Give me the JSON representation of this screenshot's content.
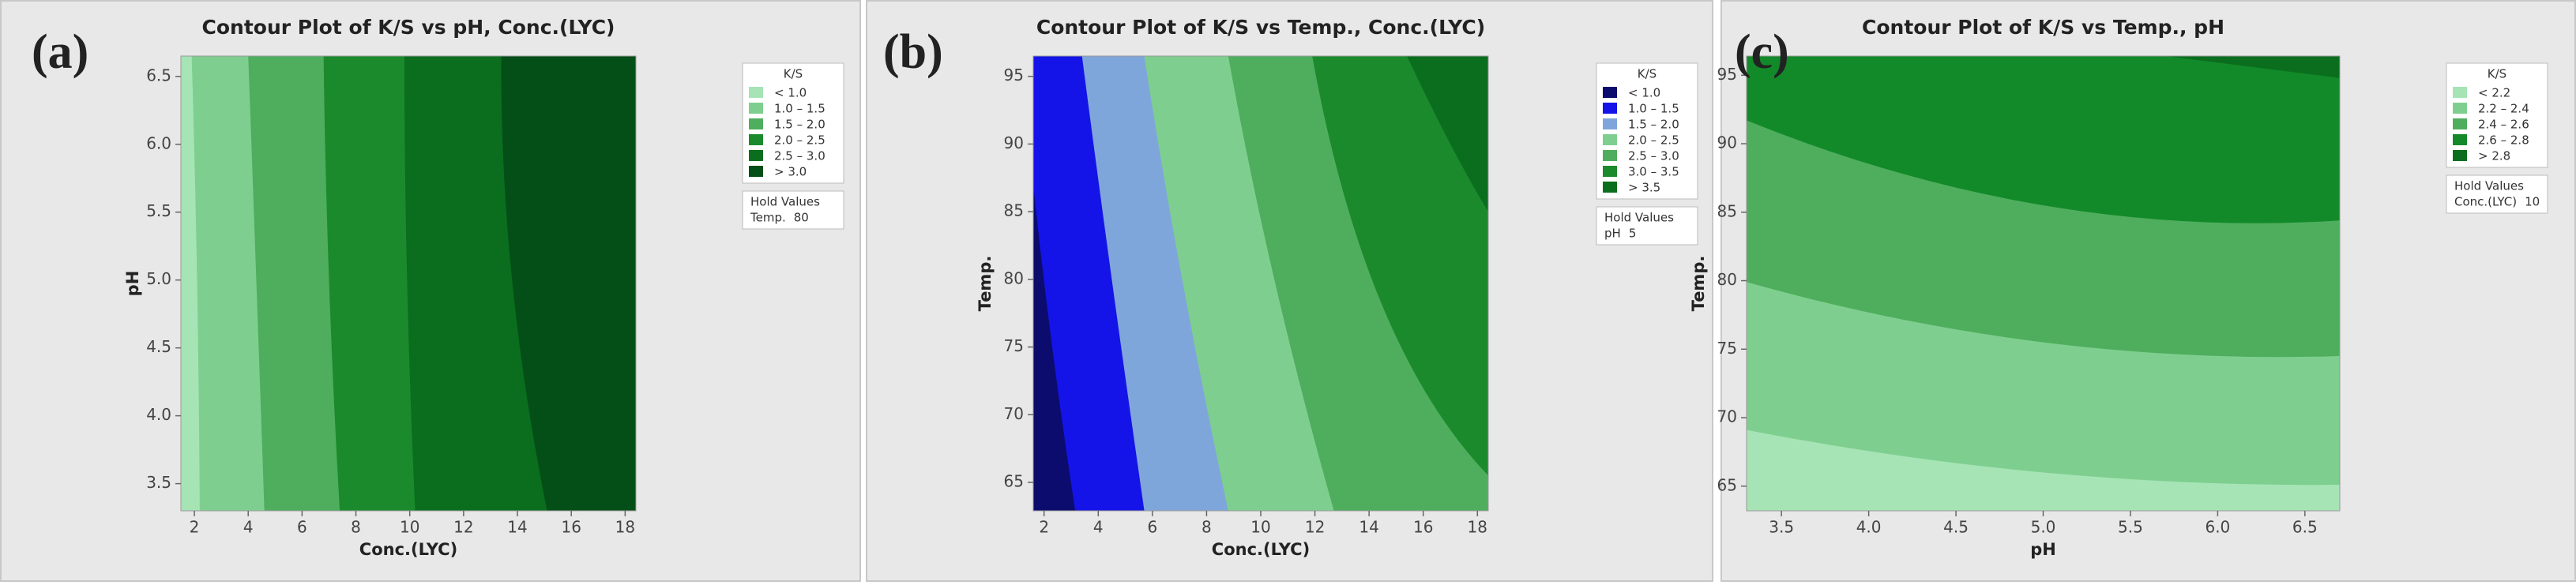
{
  "chart_data": [
    {
      "type": "contour",
      "panel": "(a)",
      "title": "Contour Plot of K/S vs pH, Conc.(LYC)",
      "xlabel": "Conc.(LYC)",
      "ylabel": "pH",
      "xlim": [
        1.5,
        18.4
      ],
      "ylim": [
        3.3,
        6.65
      ],
      "xticks": [
        2,
        4,
        6,
        8,
        10,
        12,
        14,
        16,
        18
      ],
      "yticks": [
        3.5,
        {
          "value": 4,
          "label": "4.0"
        },
        4.5,
        {
          "value": 5,
          "label": "5.0"
        },
        5.5,
        {
          "value": 6,
          "label": "6.0"
        },
        6.5
      ],
      "high_side": "right",
      "legend": {
        "title": "K/S",
        "entries": [
          {
            "label": "< 1.0",
            "color": "#a6e4b6"
          },
          {
            "label": "1.0 – 1.5",
            "color": "#7ecf8f"
          },
          {
            "label": "1.5 – 2.0",
            "color": "#4fae5d"
          },
          {
            "label": "2.0 – 2.5",
            "color": "#1b8a2c"
          },
          {
            "label": "2.5 – 3.0",
            "color": "#0a6e1e"
          },
          {
            "label": "> 3.0",
            "color": "#034f17"
          }
        ]
      },
      "hold_values": {
        "title": "Hold Values",
        "label": "Temp.",
        "value": 80
      },
      "contours": [
        {
          "level": 1.0,
          "x": [
            1.9,
            2.1,
            2.2
          ],
          "y": [
            6.65,
            5,
            3.3
          ]
        },
        {
          "level": 1.5,
          "x": [
            4.0,
            4.3,
            4.6
          ],
          "y": [
            6.65,
            5,
            3.3
          ]
        },
        {
          "level": 2.0,
          "x": [
            6.8,
            7.0,
            7.4
          ],
          "y": [
            6.65,
            5,
            3.3
          ]
        },
        {
          "level": 2.5,
          "x": [
            9.8,
            9.9,
            10.2
          ],
          "y": [
            6.65,
            5,
            3.3
          ]
        },
        {
          "level": 3.0,
          "x": [
            13.4,
            13.8,
            15.1
          ],
          "y": [
            6.65,
            5,
            3.3
          ]
        }
      ]
    },
    {
      "type": "contour",
      "panel": "(b)",
      "title": "Contour Plot of K/S vs Temp., Conc.(LYC)",
      "xlabel": "Conc.(LYC)",
      "ylabel": "Temp.",
      "xlim": [
        1.6,
        18.4
      ],
      "ylim": [
        62.9,
        96.5
      ],
      "xticks": [
        2,
        4,
        6,
        8,
        10,
        12,
        14,
        16,
        18
      ],
      "yticks": [
        65,
        70,
        75,
        80,
        85,
        90,
        95
      ],
      "high_side": "right",
      "legend": {
        "title": "K/S",
        "entries": [
          {
            "label": "< 1.0",
            "color": "#0c0c6e"
          },
          {
            "label": "1.0 – 1.5",
            "color": "#1414e8"
          },
          {
            "label": "1.5 – 2.0",
            "color": "#7fa6da"
          },
          {
            "label": "2.0 – 2.5",
            "color": "#7ecf8f"
          },
          {
            "label": "2.5 – 3.0",
            "color": "#4fae5d"
          },
          {
            "label": "3.0 – 3.5",
            "color": "#1b8a2c"
          },
          {
            "label": "> 3.5",
            "color": "#0a6e1e"
          }
        ]
      },
      "hold_values": {
        "title": "Hold Values",
        "label": "pH",
        "value": 5
      },
      "contours": [
        {
          "level": 1.0,
          "x": [
            1.6,
            2.3,
            3.15
          ],
          "y": [
            87,
            75,
            62.9
          ]
        },
        {
          "level": 1.5,
          "x": [
            3.4,
            4.5,
            5.7
          ],
          "y": [
            96.5,
            80,
            62.9
          ]
        },
        {
          "level": 2.0,
          "x": [
            5.7,
            7.1,
            8.8
          ],
          "y": [
            96.5,
            80,
            62.9
          ]
        },
        {
          "level": 2.5,
          "x": [
            8.8,
            10.5,
            12.7
          ],
          "y": [
            96.5,
            80,
            62.9
          ]
        },
        {
          "level": 3.0,
          "x": [
            11.9,
            14.5,
            18.4
          ],
          "y": [
            96.5,
            78,
            65.5
          ]
        },
        {
          "level": 3.5,
          "x": [
            15.4,
            17,
            18.4
          ],
          "y": [
            96.5,
            90,
            85
          ]
        }
      ]
    },
    {
      "type": "contour",
      "panel": "(c)",
      "title": "Contour Plot of K/S vs Temp., pH",
      "xlabel": "pH",
      "ylabel": "Temp.",
      "xlim": [
        3.3,
        6.7
      ],
      "ylim": [
        63.2,
        96.4
      ],
      "xticks": [
        3.5,
        {
          "value": 4,
          "label": "4.0"
        },
        4.5,
        {
          "value": 5,
          "label": "5.0"
        },
        5.5,
        {
          "value": 6,
          "label": "6.0"
        },
        6.5
      ],
      "yticks": [
        65,
        70,
        75,
        80,
        85,
        90,
        95
      ],
      "high_side": "top",
      "legend": {
        "title": "K/S",
        "entries": [
          {
            "label": "< 2.2",
            "color": "#a6e4b6"
          },
          {
            "label": "2.2 – 2.4",
            "color": "#7ecf8f"
          },
          {
            "label": "2.4 – 2.6",
            "color": "#4fae5d"
          },
          {
            "label": "2.6 – 2.8",
            "color": "#138a2a"
          },
          {
            "label": "> 2.8",
            "color": "#0a6e1e"
          }
        ]
      },
      "hold_values": {
        "title": "Hold Values",
        "label": "Conc.(LYC)",
        "value": 10
      },
      "contours": [
        {
          "level": 2.2,
          "x": [
            3.3,
            5,
            6.7
          ],
          "y": [
            69.1,
            66,
            65.1
          ]
        },
        {
          "level": 2.4,
          "x": [
            3.3,
            5,
            6.7
          ],
          "y": [
            79.9,
            75.5,
            74.5
          ]
        },
        {
          "level": 2.6,
          "x": [
            3.3,
            5,
            6.7
          ],
          "y": [
            91.7,
            85.5,
            84.4
          ]
        },
        {
          "level": 2.8,
          "x": [
            5.7,
            6.2,
            6.7
          ],
          "y": [
            96.4,
            95.6,
            94.8
          ]
        }
      ]
    }
  ]
}
